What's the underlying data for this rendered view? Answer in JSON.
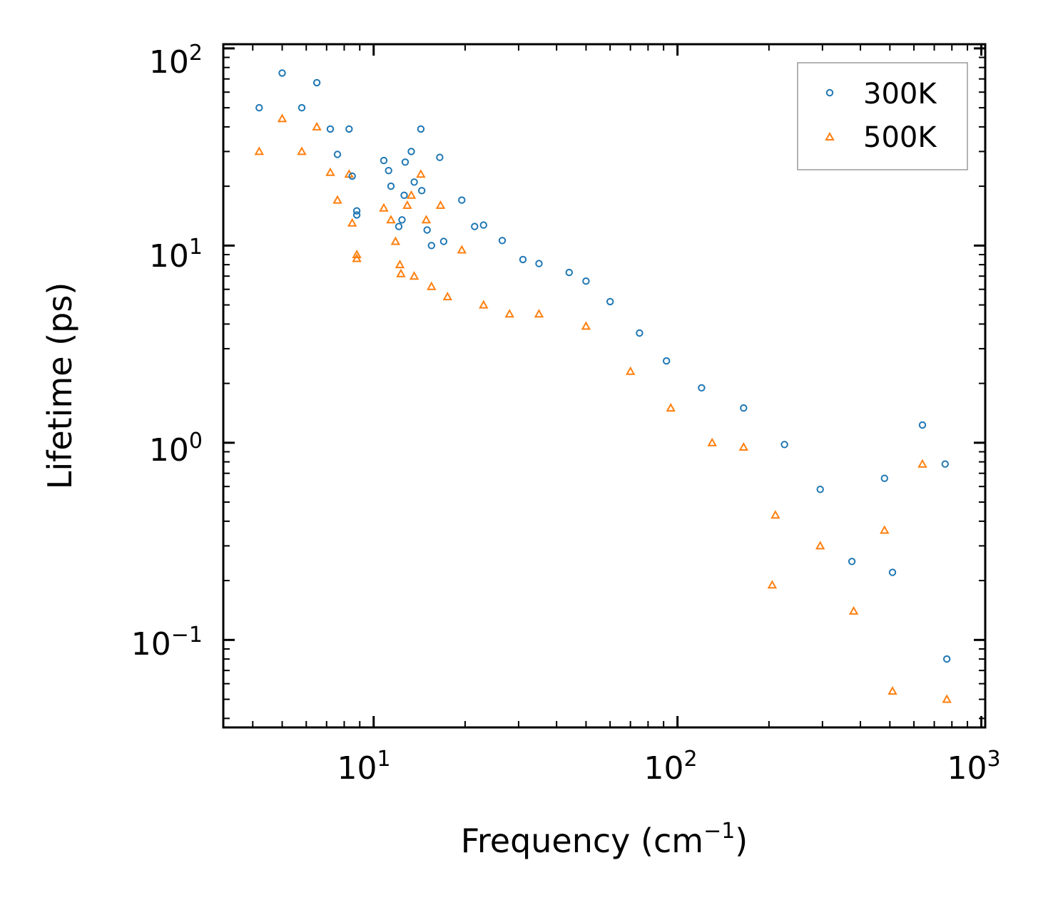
{
  "chart_data": {
    "type": "scatter",
    "title": "",
    "xlabel": "Frequency (cm",
    "xlabel_exponent": "−1",
    "xlabel_suffix": ")",
    "ylabel": "Lifetime (ps)",
    "xscale": "log",
    "yscale": "log",
    "xlim": [
      3.2,
      1030
    ],
    "ylim": [
      0.036,
      105
    ],
    "x_ticks": [
      {
        "base": "10",
        "exp": "1",
        "value": 10
      },
      {
        "base": "10",
        "exp": "2",
        "value": 100
      },
      {
        "base": "10",
        "exp": "3",
        "value": 1000
      }
    ],
    "y_ticks": [
      {
        "base": "10",
        "exp": "2",
        "value": 100
      },
      {
        "base": "10",
        "exp": "1",
        "value": 10
      },
      {
        "base": "10",
        "exp": "0",
        "value": 1
      },
      {
        "base": "10",
        "exp": "−1",
        "value": 0.1
      }
    ],
    "legend": {
      "placement": "top-right"
    },
    "series": [
      {
        "name": "300K",
        "marker": "circle",
        "color": "#1f77b4",
        "points": [
          [
            4.2,
            50
          ],
          [
            5.0,
            75
          ],
          [
            5.8,
            50
          ],
          [
            6.5,
            67
          ],
          [
            7.2,
            39
          ],
          [
            7.6,
            29
          ],
          [
            8.3,
            39
          ],
          [
            8.5,
            22.5
          ],
          [
            8.8,
            15
          ],
          [
            8.8,
            14.3
          ],
          [
            10.8,
            27
          ],
          [
            11.2,
            24
          ],
          [
            11.4,
            20
          ],
          [
            12.1,
            12.5
          ],
          [
            12.4,
            13.5
          ],
          [
            12.6,
            18
          ],
          [
            12.7,
            26.5
          ],
          [
            13.3,
            30
          ],
          [
            13.6,
            21
          ],
          [
            14.3,
            39
          ],
          [
            14.4,
            19
          ],
          [
            15.0,
            12
          ],
          [
            15.5,
            10
          ],
          [
            16.5,
            28
          ],
          [
            17.0,
            10.5
          ],
          [
            19.5,
            17
          ],
          [
            21.5,
            12.5
          ],
          [
            23.0,
            12.7
          ],
          [
            26.5,
            10.6
          ],
          [
            31.0,
            8.5
          ],
          [
            35.0,
            8.1
          ],
          [
            44.0,
            7.3
          ],
          [
            50.0,
            6.6
          ],
          [
            60.0,
            5.2
          ],
          [
            75.0,
            3.6
          ],
          [
            92.0,
            2.6
          ],
          [
            120.0,
            1.9
          ],
          [
            165.0,
            1.5
          ],
          [
            225.0,
            0.98
          ],
          [
            295.0,
            0.58
          ],
          [
            375.0,
            0.25
          ],
          [
            480.0,
            0.66
          ],
          [
            510.0,
            0.22
          ],
          [
            640.0,
            1.23
          ],
          [
            760.0,
            0.78
          ],
          [
            770.0,
            0.08
          ]
        ]
      },
      {
        "name": "500K",
        "marker": "triangle",
        "color": "#ff7f0e",
        "points": [
          [
            4.2,
            30
          ],
          [
            5.0,
            44
          ],
          [
            5.8,
            30
          ],
          [
            6.5,
            40
          ],
          [
            7.2,
            23.5
          ],
          [
            7.6,
            17
          ],
          [
            8.3,
            23
          ],
          [
            8.5,
            13
          ],
          [
            8.8,
            9
          ],
          [
            8.8,
            8.6
          ],
          [
            10.8,
            15.5
          ],
          [
            11.4,
            13.5
          ],
          [
            11.8,
            10.5
          ],
          [
            12.2,
            8
          ],
          [
            12.3,
            7.2
          ],
          [
            12.9,
            16
          ],
          [
            13.3,
            18
          ],
          [
            13.6,
            7
          ],
          [
            14.3,
            23
          ],
          [
            14.9,
            13.5
          ],
          [
            15.5,
            6.2
          ],
          [
            16.6,
            16
          ],
          [
            17.5,
            5.5
          ],
          [
            19.5,
            9.5
          ],
          [
            23.0,
            5.0
          ],
          [
            28.0,
            4.5
          ],
          [
            35.0,
            4.5
          ],
          [
            50.0,
            3.9
          ],
          [
            70.0,
            2.3
          ],
          [
            95.0,
            1.5
          ],
          [
            130.0,
            1.0
          ],
          [
            165.0,
            0.95
          ],
          [
            210.0,
            0.43
          ],
          [
            205.0,
            0.19
          ],
          [
            295.0,
            0.3
          ],
          [
            380.0,
            0.14
          ],
          [
            480.0,
            0.36
          ],
          [
            510.0,
            0.055
          ],
          [
            640.0,
            0.78
          ],
          [
            770.0,
            0.05
          ]
        ]
      }
    ]
  }
}
